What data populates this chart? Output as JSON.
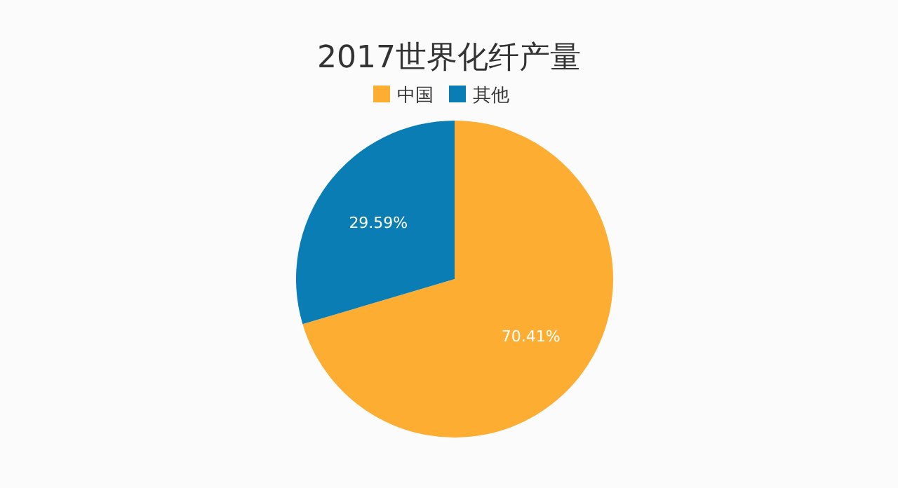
{
  "chart_data": {
    "type": "pie",
    "title": "2017世界化纤产量",
    "categories": [
      "中国",
      "其他"
    ],
    "values": [
      70.41,
      29.59
    ],
    "colors": [
      "#fcad32",
      "#0a7db5"
    ],
    "value_labels": [
      "70.41%",
      "29.59%"
    ],
    "legend": "top"
  }
}
